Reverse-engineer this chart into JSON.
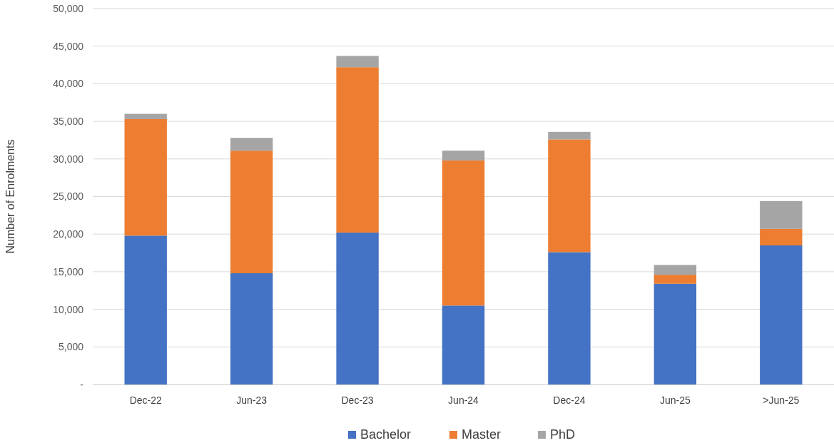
{
  "chart_data": {
    "type": "bar",
    "stacked": true,
    "ylabel": "Number of Enrolments",
    "categories": [
      "Dec-22",
      "Jun-23",
      "Dec-23",
      "Jun-24",
      "Dec-24",
      "Jun-25",
      ">Jun-25"
    ],
    "series": [
      {
        "name": "Bachelor",
        "color": "#4472c4",
        "values": [
          19800,
          14800,
          20200,
          10500,
          17600,
          13400,
          18500
        ]
      },
      {
        "name": "Master",
        "color": "#ed7d31",
        "values": [
          15500,
          16300,
          22000,
          19300,
          15000,
          1200,
          2200
        ]
      },
      {
        "name": "PhD",
        "color": "#a5a5a5",
        "values": [
          700,
          1700,
          1500,
          1300,
          1000,
          1300,
          3700
        ]
      }
    ],
    "ylim": [
      0,
      50000
    ],
    "yticks": [
      {
        "value": 0,
        "label": "-"
      },
      {
        "value": 5000,
        "label": "5,000"
      },
      {
        "value": 10000,
        "label": "10,000"
      },
      {
        "value": 15000,
        "label": "15,000"
      },
      {
        "value": 20000,
        "label": "20,000"
      },
      {
        "value": 25000,
        "label": "25,000"
      },
      {
        "value": 30000,
        "label": "30,000"
      },
      {
        "value": 35000,
        "label": "35,000"
      },
      {
        "value": 40000,
        "label": "40,000"
      },
      {
        "value": 45000,
        "label": "45,000"
      },
      {
        "value": 50000,
        "label": "50,000"
      }
    ],
    "grid": "y",
    "legend": "bottom"
  }
}
